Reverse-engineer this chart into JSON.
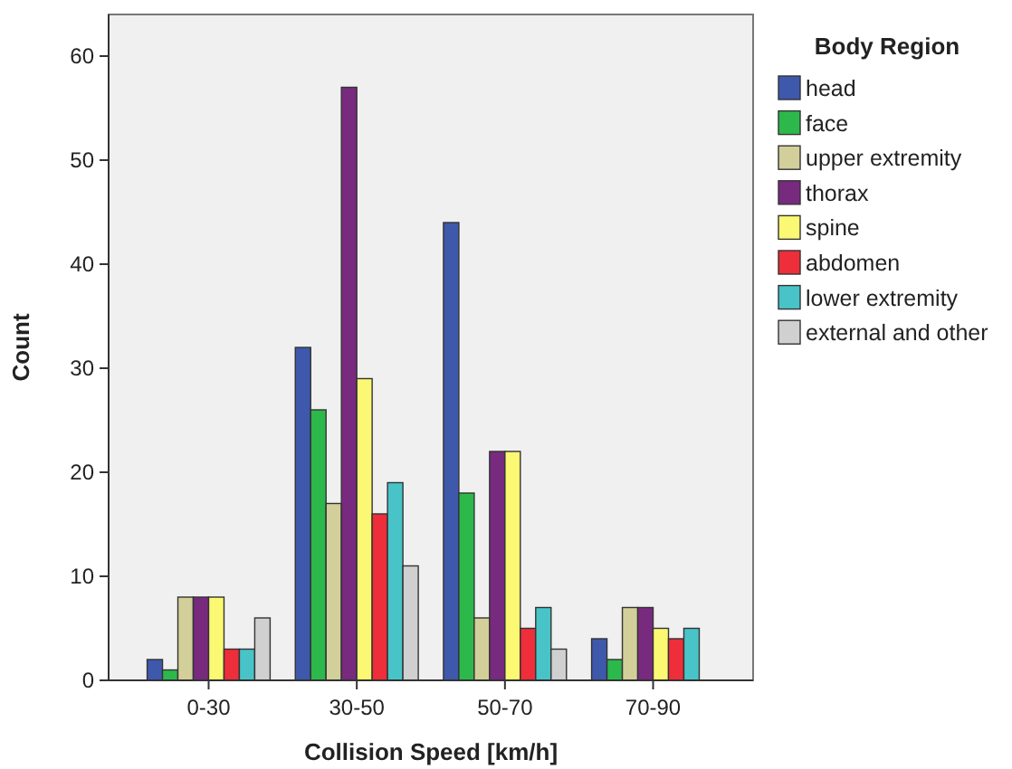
{
  "chart_data": {
    "type": "bar",
    "xlabel": "Collision Speed [km/h]",
    "ylabel": "Count",
    "legend_title": "Body Region",
    "legend": "right",
    "grid": false,
    "categories": [
      "0-30",
      "30-50",
      "50-70",
      "70-90"
    ],
    "ylim": [
      0,
      64
    ],
    "yticks": [
      0,
      10,
      20,
      30,
      40,
      50,
      60
    ],
    "series": [
      {
        "name": "head",
        "color": "#3e58ac",
        "values": [
          2,
          32,
          44,
          4
        ]
      },
      {
        "name": "face",
        "color": "#2db84c",
        "values": [
          1,
          26,
          18,
          2
        ]
      },
      {
        "name": "upper extremity",
        "color": "#d2cf9a",
        "values": [
          8,
          17,
          6,
          7
        ]
      },
      {
        "name": "thorax",
        "color": "#782a7e",
        "values": [
          8,
          57,
          22,
          7
        ]
      },
      {
        "name": "spine",
        "color": "#fbf873",
        "values": [
          8,
          29,
          22,
          5
        ]
      },
      {
        "name": "abdomen",
        "color": "#ee2e3a",
        "values": [
          3,
          16,
          5,
          4
        ]
      },
      {
        "name": "lower extremity",
        "color": "#48c4c8",
        "values": [
          3,
          19,
          7,
          5
        ]
      },
      {
        "name": "external and other",
        "color": "#d0d0d0",
        "values": [
          6,
          11,
          3,
          0
        ]
      }
    ]
  }
}
